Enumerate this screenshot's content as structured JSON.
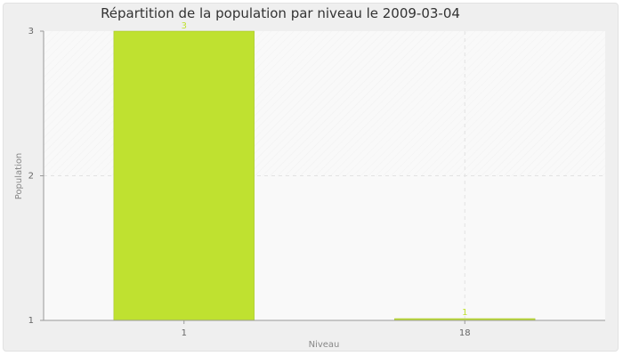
{
  "chart_data": {
    "type": "bar",
    "title": "Répartition de la population par niveau le 2009-03-04",
    "xlabel": "Niveau",
    "ylabel": "Population",
    "categories": [
      "1",
      "18"
    ],
    "values": [
      3,
      1
    ],
    "data_labels": [
      "3",
      "1"
    ],
    "yticks": [
      "1",
      "2",
      "3"
    ],
    "ylim": [
      1,
      3
    ],
    "grid": true,
    "colors": {
      "bar": "#bfe130",
      "bar_stroke": "#9fbf20",
      "label": "#bfe130",
      "plot_bg": "#f9f9f9",
      "grid": "#e2e2e2",
      "axis": "#999999",
      "text": "#666666"
    }
  }
}
